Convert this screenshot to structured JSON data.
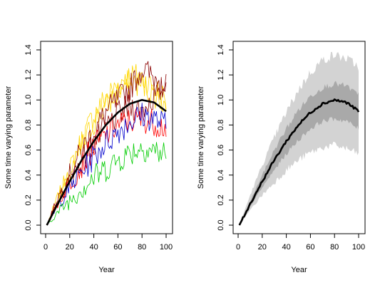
{
  "chart_data": [
    {
      "type": "line",
      "panel": "left",
      "title": "",
      "xlabel": "Year",
      "ylabel": "Some time varying parameter",
      "xlim": [
        0,
        100
      ],
      "ylim": [
        0,
        1.4
      ],
      "x_ticks": [
        0,
        20,
        40,
        60,
        80,
        100
      ],
      "y_ticks": [
        0.0,
        0.2,
        0.4,
        0.6,
        0.8,
        1.0,
        1.2,
        1.4
      ],
      "x_tick_labels": [
        "0",
        "20",
        "40",
        "60",
        "80",
        "100"
      ],
      "y_tick_labels": [
        "0.0",
        "0.2",
        "0.4",
        "0.6",
        "0.8",
        "1.0",
        "1.2",
        "1.4"
      ],
      "grid": false,
      "legend": "none",
      "x": [
        1,
        10,
        20,
        30,
        40,
        50,
        60,
        70,
        80,
        90,
        100
      ],
      "series": [
        {
          "color": "#000000",
          "role": "mean",
          "values": [
            0.0,
            0.17,
            0.35,
            0.52,
            0.67,
            0.8,
            0.9,
            0.97,
            1.0,
            0.98,
            0.91
          ]
        },
        {
          "color": "#FFD700",
          "values": [
            0.0,
            0.23,
            0.45,
            0.68,
            0.88,
            1.02,
            1.12,
            1.2,
            1.18,
            1.1,
            1.0
          ]
        },
        {
          "color": "#FFD700",
          "values": [
            0.0,
            0.2,
            0.4,
            0.62,
            0.82,
            0.95,
            1.05,
            1.15,
            1.12,
            1.05,
            0.95
          ]
        },
        {
          "color": "#8B0000",
          "values": [
            0.0,
            0.22,
            0.42,
            0.6,
            0.75,
            0.9,
            1.0,
            1.1,
            1.25,
            1.18,
            1.1
          ]
        },
        {
          "color": "#8B0000",
          "values": [
            0.0,
            0.18,
            0.36,
            0.52,
            0.66,
            0.78,
            0.88,
            0.95,
            0.92,
            1.02,
            1.12
          ]
        },
        {
          "color": "#FF0000",
          "values": [
            0.0,
            0.17,
            0.33,
            0.48,
            0.63,
            0.72,
            0.8,
            0.83,
            0.85,
            0.82,
            0.78
          ]
        },
        {
          "color": "#0000CD",
          "values": [
            0.0,
            0.15,
            0.3,
            0.43,
            0.55,
            0.66,
            0.75,
            0.83,
            0.88,
            0.85,
            0.8
          ]
        },
        {
          "color": "#00CC00",
          "values": [
            0.0,
            0.1,
            0.2,
            0.3,
            0.38,
            0.45,
            0.52,
            0.58,
            0.62,
            0.6,
            0.56
          ]
        }
      ]
    },
    {
      "type": "area",
      "panel": "right",
      "title": "",
      "xlabel": "Year",
      "ylabel": "Some time varying parameter",
      "xlim": [
        0,
        100
      ],
      "ylim": [
        0,
        1.4
      ],
      "x_ticks": [
        0,
        20,
        40,
        60,
        80,
        100
      ],
      "y_ticks": [
        0.0,
        0.2,
        0.4,
        0.6,
        0.8,
        1.0,
        1.2,
        1.4
      ],
      "x_tick_labels": [
        "0",
        "20",
        "40",
        "60",
        "80",
        "100"
      ],
      "y_tick_labels": [
        "0.0",
        "0.2",
        "0.4",
        "0.6",
        "0.8",
        "1.0",
        "1.2",
        "1.4"
      ],
      "grid": false,
      "legend": "none",
      "x": [
        1,
        10,
        20,
        30,
        40,
        50,
        60,
        70,
        80,
        90,
        100
      ],
      "bands": [
        {
          "color": "#D3D3D3",
          "lower": [
            0.0,
            0.12,
            0.24,
            0.34,
            0.44,
            0.52,
            0.58,
            0.62,
            0.64,
            0.61,
            0.57
          ],
          "upper": [
            0.0,
            0.24,
            0.48,
            0.7,
            0.9,
            1.08,
            1.22,
            1.32,
            1.36,
            1.33,
            1.27
          ]
        },
        {
          "color": "#A9A9A9",
          "lower": [
            0.0,
            0.15,
            0.3,
            0.44,
            0.57,
            0.68,
            0.77,
            0.83,
            0.85,
            0.83,
            0.77
          ]
        },
        {
          "color": "#A9A9A9",
          "upper": [
            0.0,
            0.19,
            0.4,
            0.6,
            0.77,
            0.92,
            1.03,
            1.1,
            1.13,
            1.11,
            1.04
          ]
        }
      ],
      "series": [
        {
          "color": "#000000",
          "role": "mean",
          "values": [
            0.0,
            0.17,
            0.35,
            0.52,
            0.67,
            0.8,
            0.9,
            0.97,
            1.0,
            0.98,
            0.91
          ]
        }
      ]
    }
  ]
}
